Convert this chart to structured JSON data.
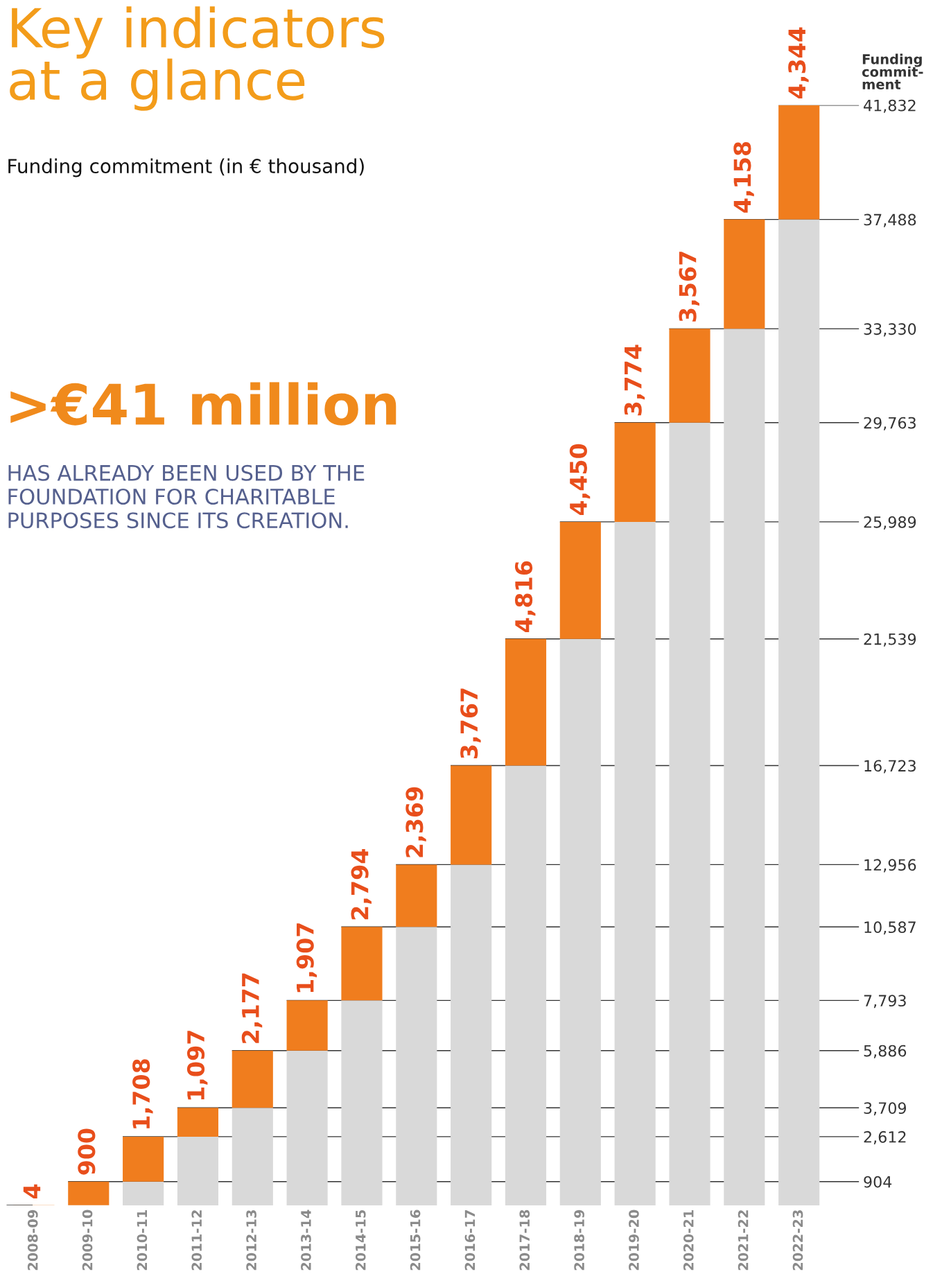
{
  "chart_data": {
    "type": "bar",
    "stacked": true,
    "title": "Key indicators\nat a glance",
    "subtitle": "Funding commitment (in € thousand)",
    "ylabel": "Funding\ncommit-\nment",
    "categories": [
      "2008-09",
      "2009-10",
      "2010-11",
      "2011-12",
      "2012-13",
      "2013-14",
      "2014-15",
      "2015-16",
      "2016-17",
      "2017-18",
      "2018-19",
      "2019-20",
      "2020-21",
      "2021-22",
      "2022-23"
    ],
    "series": [
      {
        "color": "#d9d9d9",
        "values": [
          0,
          4,
          904,
          2612,
          3709,
          5886,
          7793,
          10587,
          12956,
          16723,
          21539,
          25989,
          29763,
          33330,
          37488
        ]
      },
      {
        "color": "#f07d1e",
        "values": [
          4,
          900,
          1708,
          1097,
          2177,
          1907,
          2794,
          2369,
          3767,
          4816,
          4450,
          3774,
          3567,
          4158,
          4344
        ],
        "value_labels": [
          "4",
          "900",
          "1,708",
          "1,097",
          "2,177",
          "1,907",
          "2,794",
          "2,369",
          "3,767",
          "4,816",
          "4,450",
          "3,774",
          "3,567",
          "4,158",
          "4,344"
        ]
      }
    ],
    "ylim": [
      0,
      41832
    ],
    "yticks": [
      {
        "value": 904,
        "label": "904"
      },
      {
        "value": 2612,
        "label": "2,612"
      },
      {
        "value": 3709,
        "label": "3,709"
      },
      {
        "value": 5886,
        "label": "5,886"
      },
      {
        "value": 7793,
        "label": "7,793"
      },
      {
        "value": 10587,
        "label": "10,587"
      },
      {
        "value": 12956,
        "label": "12,956"
      },
      {
        "value": 16723,
        "label": "16,723"
      },
      {
        "value": 21539,
        "label": "21,539"
      },
      {
        "value": 25989,
        "label": "25,989"
      },
      {
        "value": 29763,
        "label": "29,763"
      },
      {
        "value": 33330,
        "label": "33,330"
      },
      {
        "value": 37488,
        "label": "37,488"
      },
      {
        "value": 41832,
        "label": "41,832"
      }
    ],
    "grid": "y",
    "annotations": [
      ">€41 million",
      "HAS ALREADY BEEN USED BY THE\nFOUNDATION FOR CHARITABLE\nPURPOSES SINCE ITS CREATION."
    ]
  }
}
